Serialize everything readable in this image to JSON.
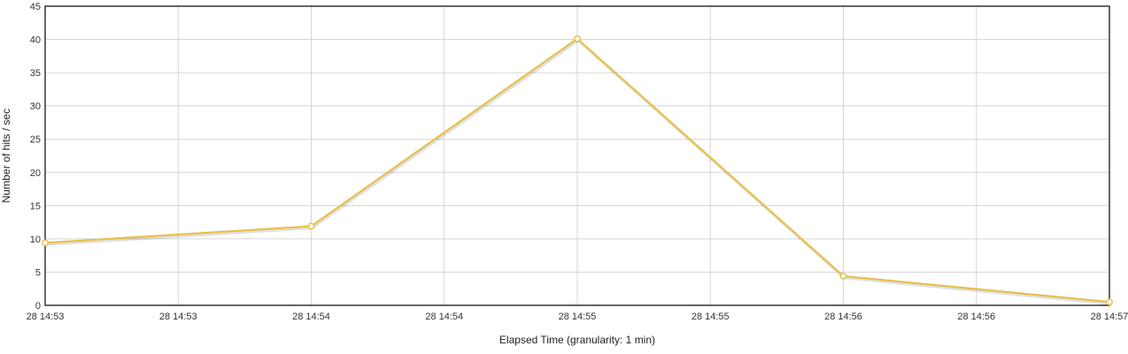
{
  "chart_data": {
    "type": "line",
    "title": "",
    "xlabel": "Elapsed Time (granularity: 1 min)",
    "ylabel": "Number of hits / sec",
    "ylim": [
      0,
      45
    ],
    "yticks": [
      0,
      5,
      10,
      15,
      20,
      25,
      30,
      35,
      40,
      45
    ],
    "xlim": [
      "14:53",
      "14:57"
    ],
    "xtick_labels": [
      "28 14:53",
      "28 14:53",
      "28 14:54",
      "28 14:54",
      "28 14:55",
      "28 14:55",
      "28 14:56",
      "28 14:56",
      "28 14:57"
    ],
    "grid": true,
    "legend": "none",
    "series": [
      {
        "color": "#e8c04a",
        "x": [
          "14:53",
          "14:54",
          "14:55",
          "14:56",
          "14:57"
        ],
        "values": [
          9.4,
          11.9,
          40.1,
          4.4,
          0.5
        ]
      }
    ]
  }
}
